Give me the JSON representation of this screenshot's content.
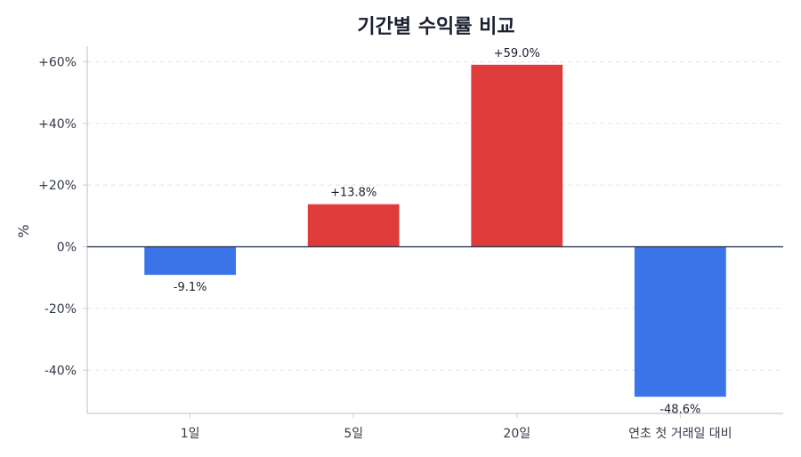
{
  "chart_data": {
    "type": "bar",
    "title": "기간별 수익률 비교",
    "xlabel": "",
    "ylabel": "%",
    "categories": [
      "1일",
      "5일",
      "20일",
      "연초 첫 거래일 대비"
    ],
    "values": [
      -9.1,
      13.8,
      59.0,
      -48.6
    ],
    "value_labels": [
      "-9.1%",
      "+13.8%",
      "+59.0%",
      "-48.6%"
    ],
    "ylim": [
      -54,
      65
    ],
    "yticks": [
      -40,
      -20,
      0,
      20,
      40,
      60
    ],
    "ytick_labels": [
      "-40%",
      "-20%",
      "0%",
      "+20%",
      "+40%",
      "+60%"
    ],
    "grid": true,
    "colors": {
      "positive": "#e03b3b",
      "negative": "#3b73e8",
      "zero_line": "#2e3a55"
    }
  }
}
